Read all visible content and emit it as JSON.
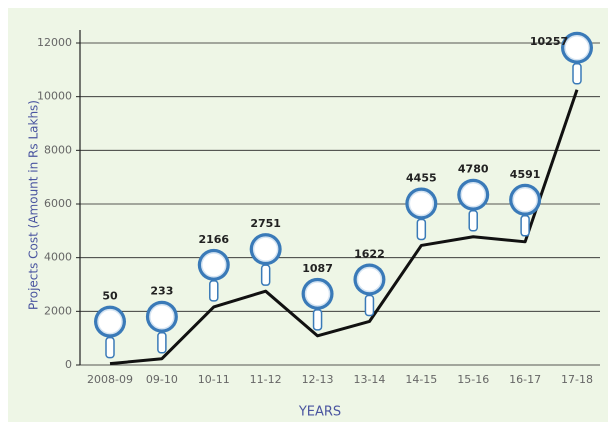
{
  "chart_data": {
    "type": "line",
    "y_label": "Projects Cost (Amount in Rs Lakhs)",
    "x_label": "YEARS",
    "categories": [
      "2008-09",
      "09-10",
      "10-11",
      "11-12",
      "12-13",
      "13-14",
      "14-15",
      "15-16",
      "16-17",
      "17-18"
    ],
    "series": [
      {
        "name": "Projects Cost",
        "color": "#111111",
        "values": [
          50,
          233,
          2166,
          2751,
          1087,
          1622,
          4455,
          4780,
          4591,
          10257
        ]
      }
    ],
    "ylim": [
      0,
      12000
    ],
    "yticks": [
      0,
      2000,
      4000,
      6000,
      8000,
      10000,
      12000
    ],
    "grid": true
  }
}
